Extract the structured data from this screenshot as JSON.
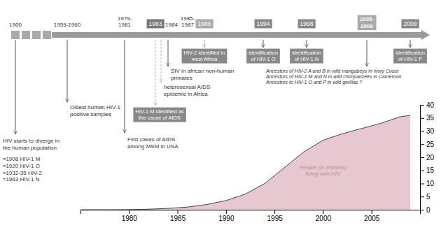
{
  "chart_data": {
    "type": "area",
    "x": [
      1975,
      1978,
      1980,
      1982,
      1984,
      1986,
      1988,
      1990,
      1992,
      1994,
      1996,
      1998,
      2000,
      2002,
      2004,
      2006,
      2008,
      2009
    ],
    "values": [
      0,
      0,
      0.05,
      0.2,
      0.5,
      1.0,
      2.0,
      3.5,
      6.0,
      10.0,
      16.0,
      22.0,
      26.5,
      29.0,
      31.0,
      33.0,
      35.5,
      36.0
    ],
    "color": "#e8c8d0",
    "xlim": [
      1975,
      2010
    ],
    "xticks": [
      1980,
      1985,
      1990,
      1995,
      2000,
      2005
    ],
    "ylim": [
      0,
      40
    ],
    "yticks": [
      0,
      5,
      10,
      15,
      20,
      25,
      30,
      35,
      40
    ],
    "annotations": [
      "1900",
      "1959-1960",
      "1979-\n1981",
      "1983",
      "1984",
      "1985-\n1987",
      "1986",
      "1994",
      "1998",
      "2005-\n2006",
      "2009",
      "HIV-1 M identified as\nthe cause of AIDS",
      "HIV-2 identified in\nwest Africa",
      "identification\nof HIV-1 O",
      "identification\nof HIV-1 N",
      "identification\nof HIV-1 P",
      "SIV in african non-human\nprimates",
      "heterosexual AIDS\nepidemic in Africa",
      "Oldest human HIV-1\npositive samples",
      "First cases of AIDS\namong MSM in USA",
      "HIV starts to diverge in\nthe human population",
      "≈1908 HIV-1 M\n≈1920 HIV-1 O\n≈1932-35 HIV-2\n≈1963 HIV-1 N",
      "Ancestors of HIV-2 A and B in wild mangabeys in Ivory Coast\nAncestors of HIV-1 M and N in wild chimpanzees in Cameroon\nAncestors to HIV-1 O and P in wild gorillas ?",
      "People (in millions)\nliving with HIV"
    ]
  }
}
